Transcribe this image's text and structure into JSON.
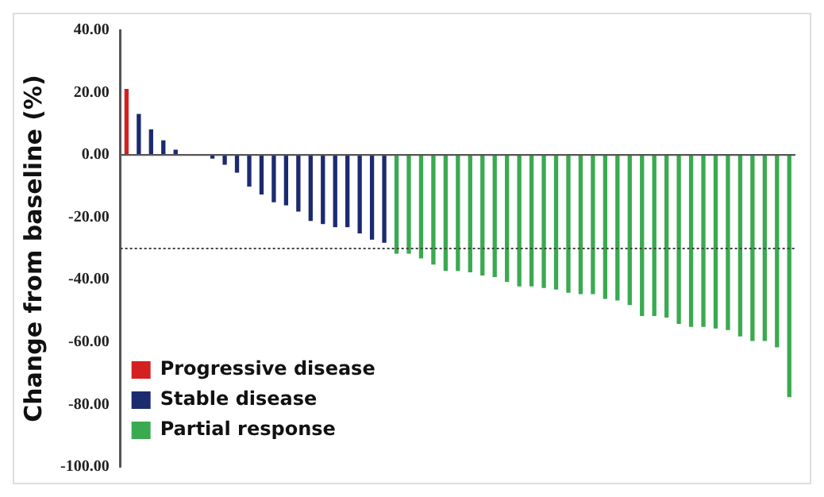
{
  "chart_data": {
    "type": "bar",
    "ylabel": "Change from baseline (%)",
    "categories": [
      null,
      null,
      null,
      null,
      null,
      null,
      null,
      null,
      null,
      null,
      null,
      null,
      null,
      null,
      null,
      null,
      null,
      null,
      null,
      null,
      null,
      null,
      null,
      null,
      null,
      null,
      null,
      null,
      null,
      null,
      null,
      null,
      null,
      null,
      null,
      null,
      null,
      null,
      null,
      null,
      null,
      null,
      null,
      null,
      null,
      null,
      null,
      null,
      null,
      null,
      null,
      null,
      null,
      null,
      null
    ],
    "series": [
      {
        "name": "Progressive disease",
        "color": "#d42020",
        "values": [
          21,
          null,
          null,
          null,
          null,
          null,
          null,
          null,
          null,
          null,
          null,
          null,
          null,
          null,
          null,
          null,
          null,
          null,
          null,
          null,
          null,
          null,
          null,
          null,
          null,
          null,
          null,
          null,
          null,
          null,
          null,
          null,
          null,
          null,
          null,
          null,
          null,
          null,
          null,
          null,
          null,
          null,
          null,
          null,
          null,
          null,
          null,
          null,
          null,
          null,
          null,
          null,
          null,
          null,
          null
        ]
      },
      {
        "name": "Stable disease",
        "color": "#1c2a70",
        "values": [
          null,
          13,
          8,
          4.5,
          1.5,
          0,
          0,
          -1,
          -3,
          -5.5,
          -10,
          -12.5,
          -15,
          -16,
          -18,
          -21,
          -22,
          -23,
          -23,
          -25,
          -27,
          -28,
          null,
          null,
          null,
          null,
          null,
          null,
          null,
          null,
          null,
          null,
          null,
          null,
          null,
          null,
          null,
          null,
          null,
          null,
          null,
          null,
          null,
          null,
          null,
          null,
          null,
          null,
          null,
          null,
          null,
          null,
          null,
          null,
          null
        ]
      },
      {
        "name": "Partial response",
        "color": "#3aaa50",
        "values": [
          null,
          null,
          null,
          null,
          null,
          null,
          null,
          null,
          null,
          null,
          null,
          null,
          null,
          null,
          null,
          null,
          null,
          null,
          null,
          null,
          null,
          null,
          -31.5,
          -31.5,
          -33,
          -35,
          -37,
          -37,
          -37.5,
          -38.5,
          -39,
          -40.5,
          -42,
          -42,
          -42.5,
          -43,
          -44,
          -44.5,
          -44.5,
          -46,
          -46.5,
          -48,
          -51.5,
          -51.5,
          -52,
          -54,
          -55,
          -55,
          -55.5,
          -56,
          -58,
          -59.5,
          -59.5,
          -61.5,
          -77.5
        ]
      }
    ],
    "ylim": [
      -100,
      40
    ],
    "yticks": [
      {
        "value": -100,
        "label": "-100.00"
      },
      {
        "value": -80,
        "label": "-80.00"
      },
      {
        "value": -60,
        "label": "-60.00"
      },
      {
        "value": -40,
        "label": "-40.00"
      },
      {
        "value": -20,
        "label": "-20.00"
      },
      {
        "value": 0,
        "label": "0.00"
      },
      {
        "value": 20,
        "label": "20.00"
      },
      {
        "value": 40,
        "label": "40.00"
      }
    ],
    "ref_lines": [
      {
        "axis": "y",
        "value": -30,
        "line_style": "dotted",
        "color": "#444444"
      }
    ],
    "tick_labels": "y",
    "legend": "bottom left"
  }
}
